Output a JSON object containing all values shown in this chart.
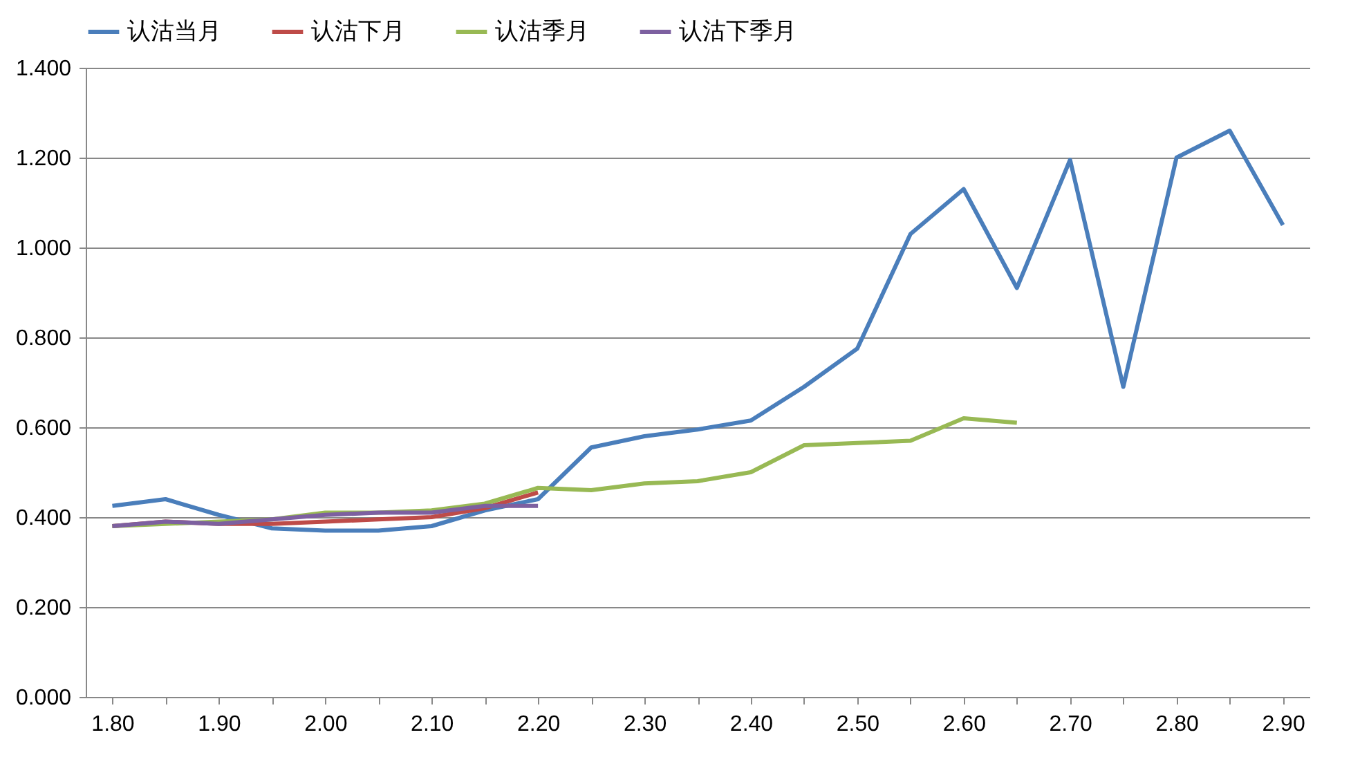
{
  "chart_data": {
    "type": "line",
    "categories": [
      "1.80",
      null,
      "1.90",
      null,
      "2.00",
      null,
      "2.10",
      null,
      "2.20",
      null,
      "2.30",
      null,
      "2.40",
      null,
      "2.50",
      null,
      "2.60",
      null,
      "2.70",
      null,
      "2.80",
      null,
      "2.90"
    ],
    "series": [
      {
        "name": "认沽当月",
        "color": "#4a7ebb",
        "values": [
          0.425,
          0.44,
          0.405,
          0.375,
          0.37,
          0.37,
          0.38,
          0.415,
          0.44,
          0.555,
          0.58,
          0.595,
          0.615,
          0.69,
          0.775,
          1.03,
          1.13,
          0.91,
          1.195,
          0.69,
          1.2,
          1.26,
          1.05
        ]
      },
      {
        "name": "认沽下月",
        "color": "#be4b48",
        "values": [
          0.38,
          0.39,
          0.385,
          0.385,
          0.39,
          0.395,
          0.4,
          0.42,
          0.455,
          null,
          null,
          null,
          null,
          null,
          null,
          null,
          null,
          null,
          null,
          null,
          null,
          null,
          null
        ]
      },
      {
        "name": "认沽季月",
        "color": "#98b954",
        "values": [
          0.38,
          0.385,
          0.39,
          0.395,
          0.41,
          0.41,
          0.415,
          0.43,
          0.465,
          0.46,
          0.475,
          0.48,
          0.5,
          0.56,
          0.565,
          0.57,
          0.62,
          0.61,
          null,
          null,
          null,
          null,
          null
        ]
      },
      {
        "name": "认沽下季月",
        "color": "#7d60a0",
        "values": [
          0.38,
          0.39,
          0.385,
          0.395,
          0.405,
          0.41,
          0.41,
          0.425,
          0.425,
          null,
          null,
          null,
          null,
          null,
          null,
          null,
          null,
          null,
          null,
          null,
          null,
          null,
          null
        ]
      }
    ],
    "ylim": [
      0,
      1.4
    ],
    "yticks": [
      {
        "value": 0,
        "label": "0.000"
      },
      {
        "value": 0.2,
        "label": "0.200"
      },
      {
        "value": 0.4,
        "label": "0.400"
      },
      {
        "value": 0.6,
        "label": "0.600"
      },
      {
        "value": 0.8,
        "label": "0.800"
      },
      {
        "value": 1,
        "label": "1.000"
      },
      {
        "value": 1.2,
        "label": "1.200"
      },
      {
        "value": 1.4,
        "label": "1.400"
      }
    ],
    "grid": "y",
    "legend": "top",
    "line_style": "solid",
    "marker": "none"
  }
}
